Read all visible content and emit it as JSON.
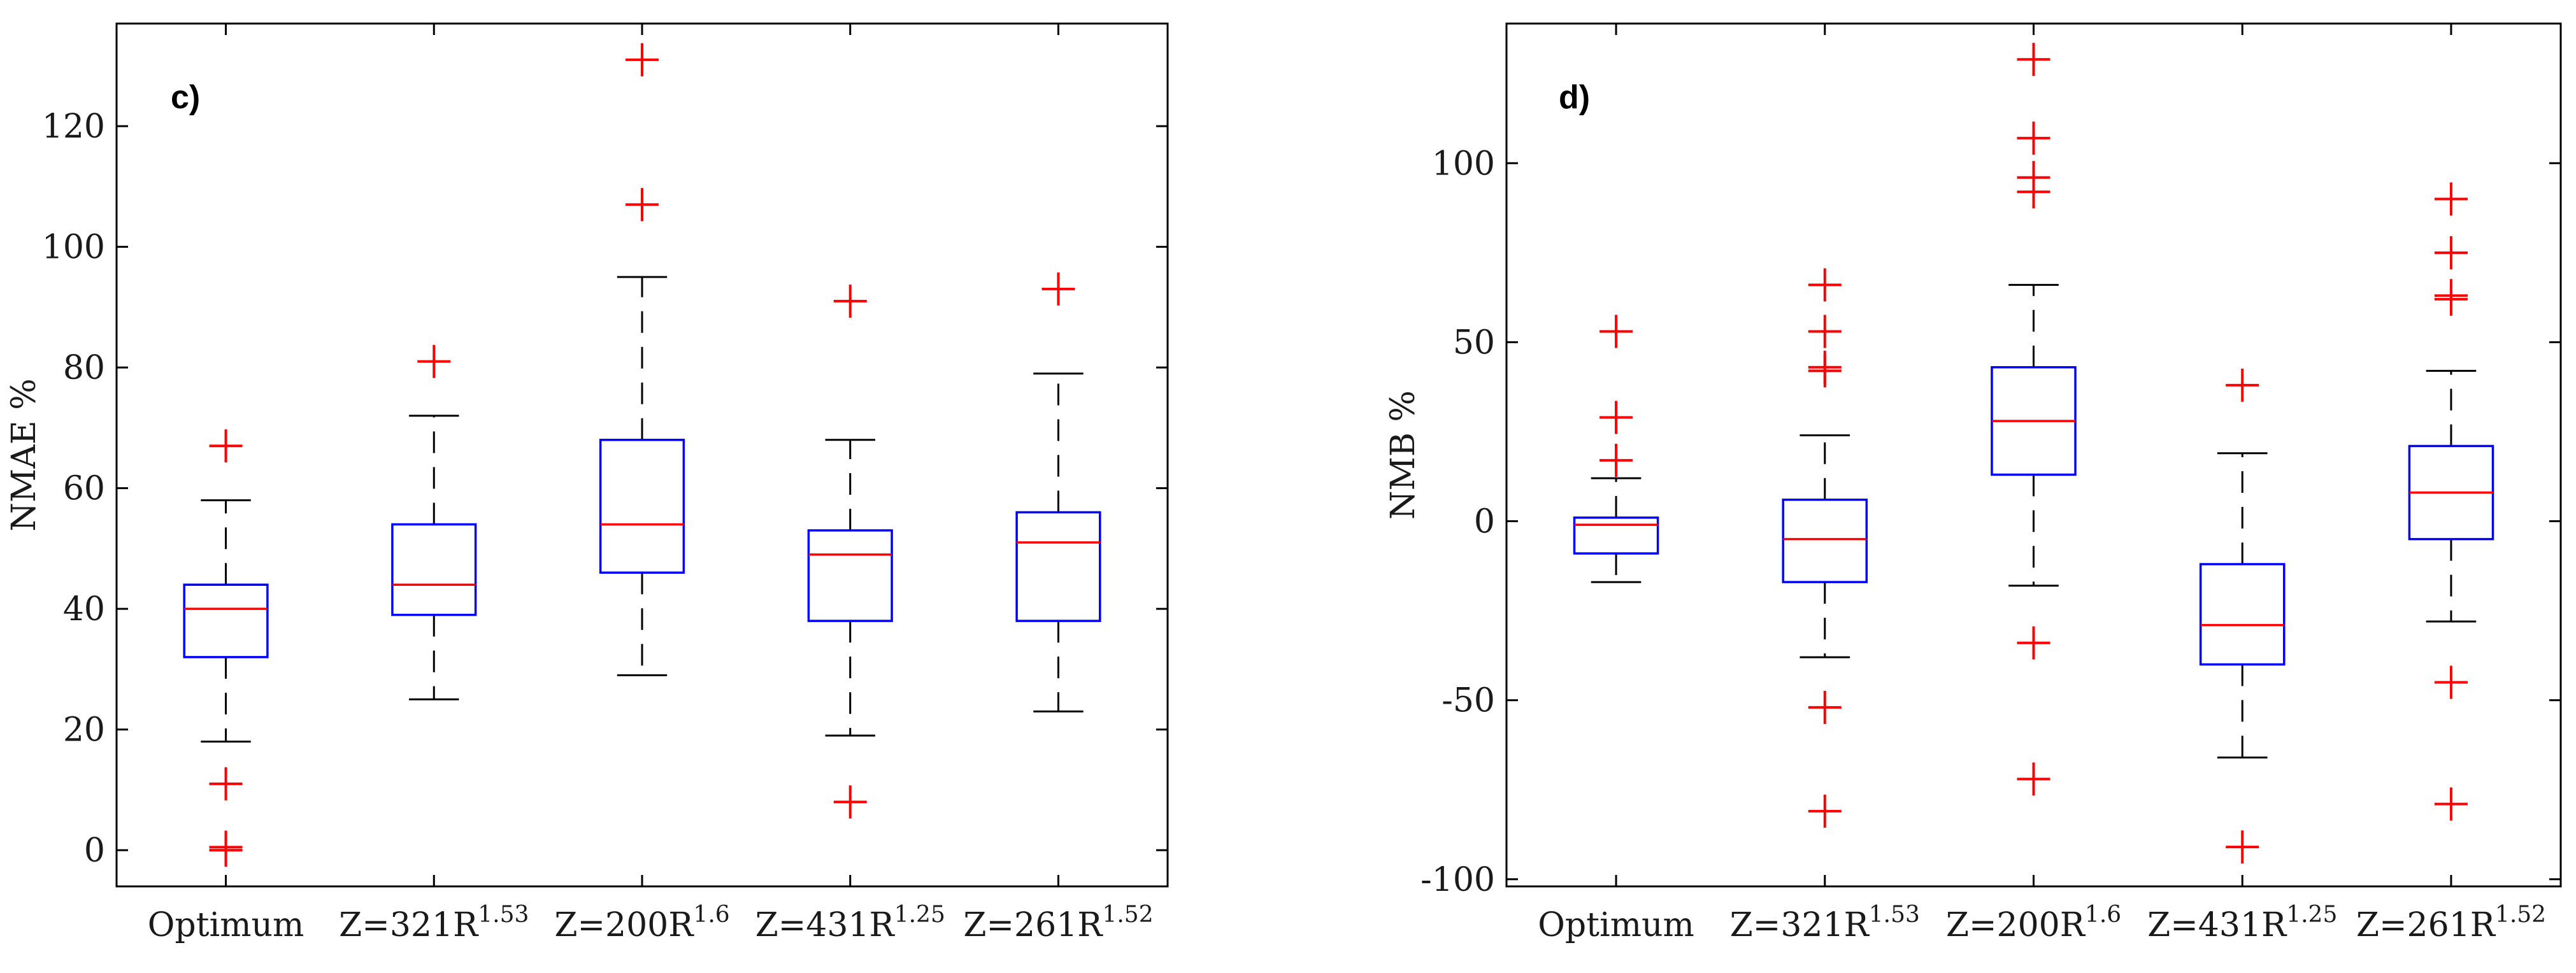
{
  "chart_data": [
    {
      "type": "box",
      "panel_label": "c)",
      "ylabel": "NMAE %",
      "ylim": [
        -6,
        137
      ],
      "yticks": [
        0,
        20,
        40,
        60,
        80,
        100,
        120
      ],
      "categories": [
        {
          "base": "Optimum",
          "sup": ""
        },
        {
          "base": "Z=321R",
          "sup": "1.53"
        },
        {
          "base": "Z=200R",
          "sup": "1.6"
        },
        {
          "base": "Z=431R",
          "sup": "1.25"
        },
        {
          "base": "Z=261R",
          "sup": "1.52"
        }
      ],
      "boxes": [
        {
          "whisker_low": 18,
          "q1": 32,
          "median": 40,
          "q3": 44,
          "whisker_high": 58,
          "outliers": [
            67,
            11,
            0.5,
            0
          ]
        },
        {
          "whisker_low": 25,
          "q1": 39,
          "median": 44,
          "q3": 54,
          "whisker_high": 72,
          "outliers": [
            81
          ]
        },
        {
          "whisker_low": 29,
          "q1": 46,
          "median": 54,
          "q3": 68,
          "whisker_high": 95,
          "outliers": [
            131,
            107
          ]
        },
        {
          "whisker_low": 19,
          "q1": 38,
          "median": 49,
          "q3": 53,
          "whisker_high": 68,
          "outliers": [
            91,
            8
          ]
        },
        {
          "whisker_low": 23,
          "q1": 38,
          "median": 51,
          "q3": 56,
          "whisker_high": 79,
          "outliers": [
            93
          ]
        }
      ]
    },
    {
      "type": "box",
      "panel_label": "d)",
      "ylabel": "NMB %",
      "ylim": [
        -102,
        139
      ],
      "yticks": [
        -100,
        -50,
        0,
        50,
        100
      ],
      "categories": [
        {
          "base": "Optimum",
          "sup": ""
        },
        {
          "base": "Z=321R",
          "sup": "1.53"
        },
        {
          "base": "Z=200R",
          "sup": "1.6"
        },
        {
          "base": "Z=431R",
          "sup": "1.25"
        },
        {
          "base": "Z=261R",
          "sup": "1.52"
        }
      ],
      "boxes": [
        {
          "whisker_low": -17,
          "q1": -9,
          "median": -1,
          "q3": 1,
          "whisker_high": 12,
          "outliers": [
            53,
            29,
            17
          ]
        },
        {
          "whisker_low": -38,
          "q1": -17,
          "median": -5,
          "q3": 6,
          "whisker_high": 24,
          "outliers": [
            66,
            53,
            43,
            42,
            -52,
            -81
          ]
        },
        {
          "whisker_low": -18,
          "q1": 13,
          "median": 28,
          "q3": 43,
          "whisker_high": 66,
          "outliers": [
            129,
            107,
            96,
            92,
            -34,
            -72
          ]
        },
        {
          "whisker_low": -66,
          "q1": -40,
          "median": -29,
          "q3": -12,
          "whisker_high": 19,
          "outliers": [
            38,
            -91
          ]
        },
        {
          "whisker_low": -28,
          "q1": -5,
          "median": 8,
          "q3": 21,
          "whisker_high": 42,
          "outliers": [
            90,
            75,
            63,
            62,
            -45,
            -79
          ]
        }
      ]
    }
  ]
}
